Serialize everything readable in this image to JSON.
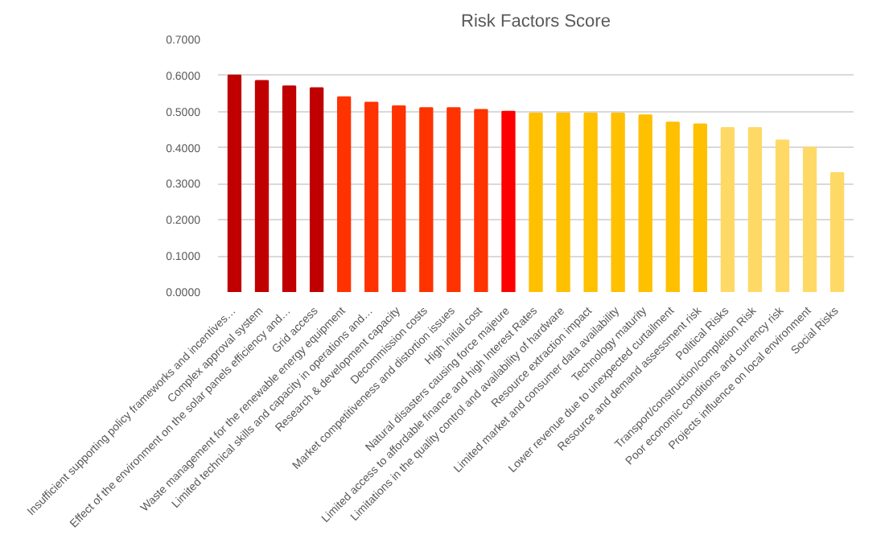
{
  "chart_data": {
    "type": "bar",
    "title": "Risk Factors Score",
    "categories": [
      "Insufficient supporting policy frameworks and incentives…",
      "Complex approval system",
      "Effect of the environment on the solar panels efficiency and…",
      "Grid access",
      "Waste management for the renewable energy equipment",
      "Limited technical skills and capacity in operations and…",
      "Research & development capacity",
      "Decommission costs",
      "Market competitiveness and distortion issues",
      "High initial cost",
      "Natural disasters causing force majeure",
      "Limited access to affordable finance and high Interest Rates",
      "Limitations in the quality control and availability of hardware",
      "Resource extraction impact",
      "Limited market and consumer data availability",
      "Technology maturity",
      "Lower revenue due to unexpected curtailment",
      "Resource and demand assessment risk",
      "Political Risks",
      "Transport/construction/completion Risk",
      "Poor economic conditions and currency risk",
      "Projects influence on local environment",
      "Social Risks"
    ],
    "values": [
      0.6,
      0.585,
      0.57,
      0.565,
      0.54,
      0.525,
      0.515,
      0.51,
      0.51,
      0.505,
      0.5,
      0.495,
      0.495,
      0.495,
      0.495,
      0.49,
      0.47,
      0.465,
      0.455,
      0.455,
      0.42,
      0.4,
      0.33
    ],
    "colors": [
      "#c00000",
      "#c00000",
      "#c00000",
      "#c00000",
      "#ff3300",
      "#ff3300",
      "#ff3300",
      "#ff3300",
      "#ff3300",
      "#ff3300",
      "#ff0000",
      "#ffc000",
      "#ffc000",
      "#ffc000",
      "#ffc000",
      "#ffc000",
      "#ffc000",
      "#ffc000",
      "#ffd966",
      "#ffd966",
      "#ffd966",
      "#ffd966",
      "#ffd966"
    ],
    "ylim": [
      0,
      0.7
    ],
    "yticks": [
      {
        "value": 0,
        "label": "0.0000"
      },
      {
        "value": 0.1,
        "label": "0.1000"
      },
      {
        "value": 0.2,
        "label": "0.2000"
      },
      {
        "value": 0.3,
        "label": "0.3000"
      },
      {
        "value": 0.4,
        "label": "0.4000"
      },
      {
        "value": 0.5,
        "label": "0.5000"
      },
      {
        "value": 0.6,
        "label": "0.6000"
      },
      {
        "value": 0.7,
        "label": "0.7000"
      }
    ],
    "grid": "y"
  }
}
